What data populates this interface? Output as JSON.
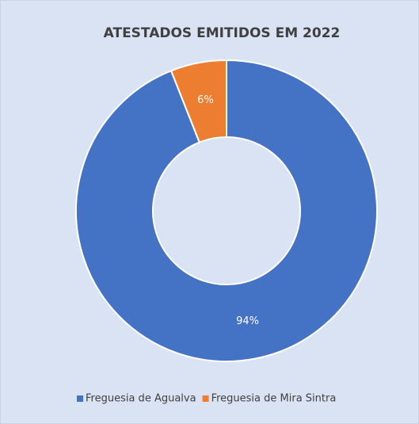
{
  "chart_data": {
    "type": "doughnut",
    "title": "ATESTADOS EMITIDOS EM 2022",
    "categories": [
      "Freguesia de Agualva",
      "Freguesia de Mira Sintra"
    ],
    "values": [
      94,
      6
    ],
    "value_labels": [
      "94%",
      "6%"
    ],
    "colors": [
      "#4472c4",
      "#ed7d31"
    ],
    "legend": "bottom"
  }
}
